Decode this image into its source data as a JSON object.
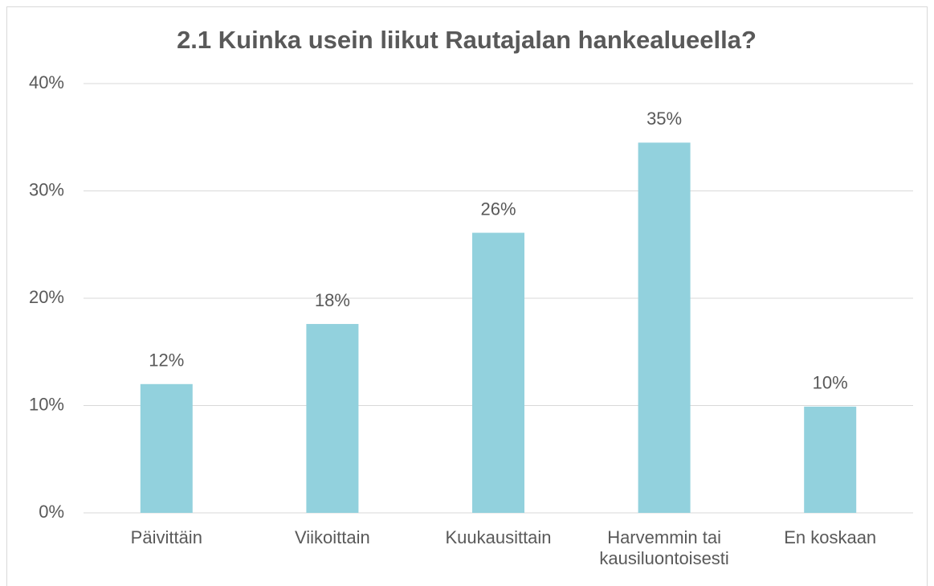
{
  "chart_data": {
    "type": "bar",
    "title": "2.1 Kuinka usein liikut Rautajalan hankealueella?",
    "categories": [
      "Päivittäin",
      "Viikoittain",
      "Kuukausittain",
      "Harvemmin tai kausiluontoisesti",
      "En koskaan"
    ],
    "values": [
      12,
      17.6,
      26.1,
      34.5,
      9.9
    ],
    "value_labels": [
      "12%",
      "18%",
      "26%",
      "35%",
      "10%"
    ],
    "color": "#92d1dd",
    "ylim": [
      0,
      40
    ],
    "yticks": [
      {
        "value": 0,
        "label": "0%"
      },
      {
        "value": 10,
        "label": "10%"
      },
      {
        "value": 20,
        "label": "20%"
      },
      {
        "value": 30,
        "label": "30%"
      },
      {
        "value": 40,
        "label": "40%"
      }
    ],
    "grid": true
  }
}
